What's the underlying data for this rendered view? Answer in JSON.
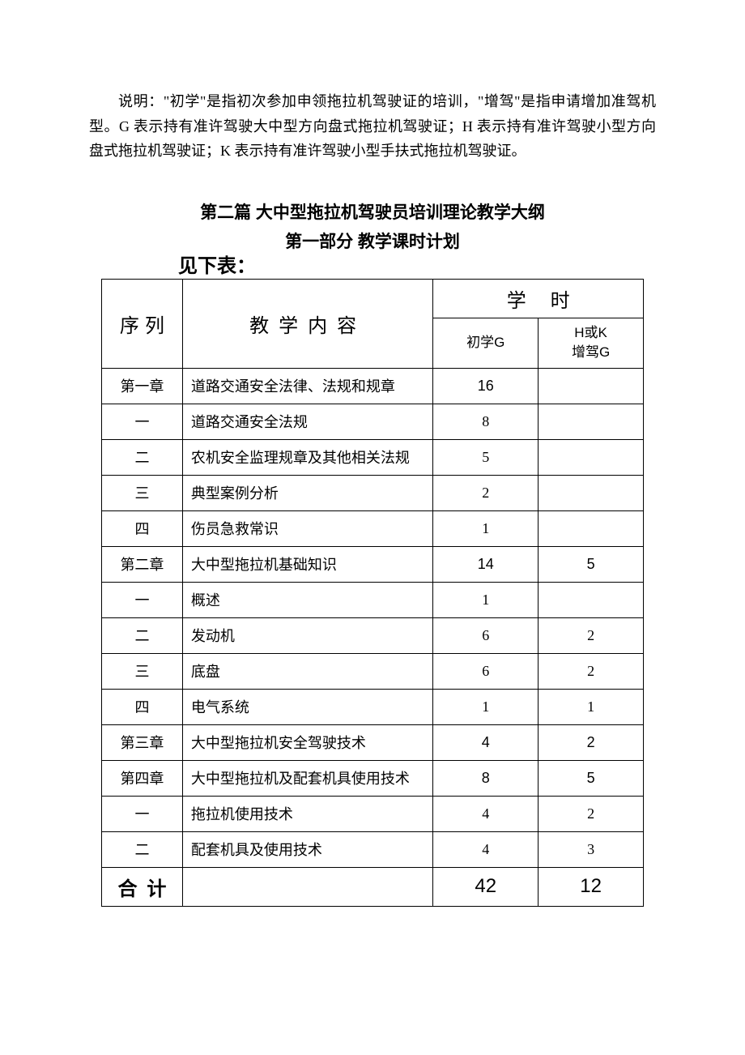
{
  "explanation": "说明：\"初学\"是指初次参加申领拖拉机驾驶证的培训，\"增驾\"是指申请增加准驾机型。G 表示持有准许驾驶大中型方向盘式拖拉机驾驶证；H 表示持有准许驾驶小型方向盘式拖拉机驾驶证；K 表示持有准许驾驶小型手扶式拖拉机驾驶证。",
  "section_title": "第二篇  大中型拖拉机驾驶员培训理论教学大纲",
  "subsection_title": "第一部分  教学课时计划",
  "see_below": "见下表：",
  "table": {
    "header": {
      "seq": "序列",
      "content": "教学内容",
      "hours": "学 时",
      "sub1": "初学G",
      "sub2_line1": "H或K",
      "sub2_line2": "增驾G"
    },
    "rows": [
      {
        "seq": "第一章",
        "content": "道路交通安全法律、法规和规章",
        "h1": "16",
        "h2": "",
        "chapter": true
      },
      {
        "seq": "一",
        "content": "道路交通安全法规",
        "h1": "8",
        "h2": "",
        "chapter": false
      },
      {
        "seq": "二",
        "content": "农机安全监理规章及其他相关法规",
        "h1": "5",
        "h2": "",
        "chapter": false
      },
      {
        "seq": "三",
        "content": "典型案例分析",
        "h1": "2",
        "h2": "",
        "chapter": false
      },
      {
        "seq": "四",
        "content": "伤员急救常识",
        "h1": "1",
        "h2": "",
        "chapter": false
      },
      {
        "seq": "第二章",
        "content": "大中型拖拉机基础知识",
        "h1": "14",
        "h2": "5",
        "chapter": true
      },
      {
        "seq": "一",
        "content": "概述",
        "h1": "1",
        "h2": "",
        "chapter": false
      },
      {
        "seq": "二",
        "content": "发动机",
        "h1": "6",
        "h2": "2",
        "chapter": false
      },
      {
        "seq": "三",
        "content": "底盘",
        "h1": "6",
        "h2": "2",
        "chapter": false
      },
      {
        "seq": "四",
        "content": "电气系统",
        "h1": "1",
        "h2": "1",
        "chapter": false
      },
      {
        "seq": "第三章",
        "content": "大中型拖拉机安全驾驶技术",
        "h1": "4",
        "h2": "2",
        "chapter": true
      },
      {
        "seq": "第四章",
        "content": "大中型拖拉机及配套机具使用技术",
        "h1": "8",
        "h2": "5",
        "chapter": true
      },
      {
        "seq": "一",
        "content": "拖拉机使用技术",
        "h1": "4",
        "h2": "2",
        "chapter": false
      },
      {
        "seq": "二",
        "content": "配套机具及使用技术",
        "h1": "4",
        "h2": "3",
        "chapter": false
      }
    ],
    "sum": {
      "label": "合计",
      "h1": "42",
      "h2": "12"
    },
    "border_color": "#000000",
    "background_color": "#ffffff"
  }
}
